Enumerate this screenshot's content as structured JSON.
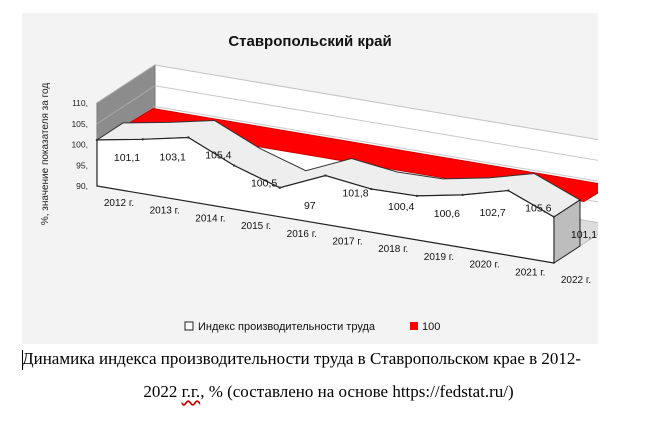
{
  "chart_data": {
    "type": "area",
    "title": "Ставропольский край",
    "ylabel": "%, значение показателя за год",
    "xlabel": "",
    "categories": [
      "2012 г.",
      "2013 г.",
      "2014 г.",
      "2015 г.",
      "2016 г.",
      "2017 г.",
      "2018 г.",
      "2019 г.",
      "2020 г.",
      "2021 г.",
      "2022 г."
    ],
    "y_ticks": [
      "90,",
      "95,",
      "100,",
      "105,",
      "110,"
    ],
    "ylim": [
      90,
      110
    ],
    "series": [
      {
        "name": "Индекс производительности труда",
        "values": [
          101.1,
          103.1,
          105.4,
          100.5,
          97,
          101.8,
          100.4,
          100.6,
          102.7,
          105.6,
          101.1
        ],
        "color": "#ffffff"
      },
      {
        "name": "100",
        "values": [
          100,
          100,
          100,
          100,
          100,
          100,
          100,
          100,
          100,
          100,
          100
        ],
        "color": "#ff0000"
      }
    ],
    "data_labels": [
      "101,1",
      "103,1",
      "105,4",
      "100,5",
      "97",
      "101,8",
      "100,4",
      "100,6",
      "102,7",
      "105,6",
      "101,1"
    ],
    "legend_position": "bottom",
    "grid": true
  },
  "caption": {
    "line1": "Динамика индекса производительности труда в Ставропольском крае в 2012-",
    "line2_pre": "2022 ",
    "line2_marked": "г.г.",
    "line2_post": ", % (составлено на основе https://fedstat.ru/)"
  }
}
